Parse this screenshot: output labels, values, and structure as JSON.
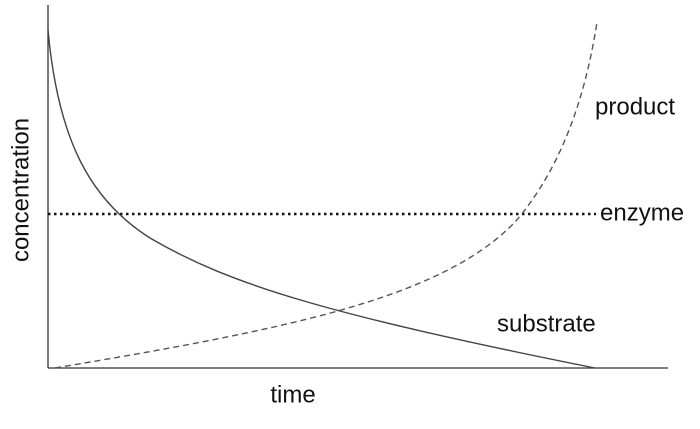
{
  "axes": {
    "x_label": "time",
    "y_label": "concentration"
  },
  "curves": [
    {
      "label": "product"
    },
    {
      "label": "enzyme"
    },
    {
      "label": "substrate"
    }
  ]
}
